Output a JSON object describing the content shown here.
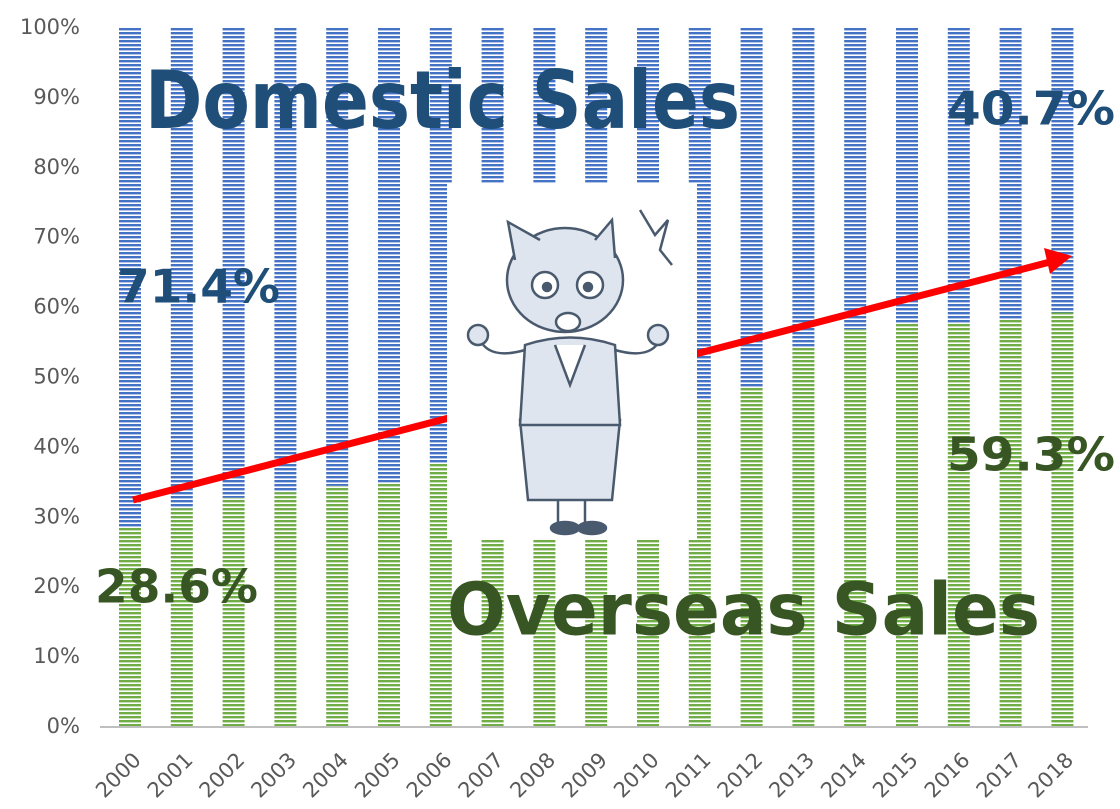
{
  "chart_data": {
    "type": "stacked_bar_100",
    "categories": [
      "2000",
      "2001",
      "2002",
      "2003",
      "2004",
      "2005",
      "2006",
      "2007",
      "2008",
      "2009",
      "2010",
      "2011",
      "2012",
      "2013",
      "2014",
      "2015",
      "2016",
      "2017",
      "2018"
    ],
    "series": [
      {
        "name": "Overseas Sales",
        "color": "#70ad47",
        "values": [
          28.6,
          31.3,
          32.8,
          33.6,
          34.5,
          35.0,
          37.8,
          40.0,
          42.0,
          44.0,
          45.0,
          46.8,
          48.5,
          54.4,
          56.9,
          57.8,
          57.8,
          58.4,
          59.3
        ],
        "value_labels": [
          "28.6%",
          null,
          null,
          null,
          null,
          null,
          null,
          null,
          null,
          null,
          null,
          null,
          null,
          null,
          null,
          null,
          null,
          null,
          "59.3%"
        ]
      },
      {
        "name": "Domestic Sales",
        "color": "#4472c4",
        "values": [
          71.4,
          68.7,
          67.2,
          66.4,
          65.5,
          65.0,
          62.2,
          60.0,
          58.0,
          56.0,
          55.0,
          53.2,
          51.5,
          45.6,
          43.1,
          42.2,
          42.2,
          41.6,
          40.7
        ],
        "value_labels": [
          "71.4%",
          null,
          null,
          null,
          null,
          null,
          null,
          null,
          null,
          null,
          null,
          null,
          null,
          null,
          null,
          null,
          null,
          null,
          "40.7%"
        ]
      }
    ],
    "ylim": [
      0,
      100
    ],
    "yticks": [
      {
        "value": 0,
        "label": "0%"
      },
      {
        "value": 10,
        "label": "10%"
      },
      {
        "value": 20,
        "label": "20%"
      },
      {
        "value": 30,
        "label": "30%"
      },
      {
        "value": 40,
        "label": "40%"
      },
      {
        "value": 50,
        "label": "50%"
      },
      {
        "value": 60,
        "label": "60%"
      },
      {
        "value": 70,
        "label": "70%"
      },
      {
        "value": 80,
        "label": "80%"
      },
      {
        "value": 90,
        "label": "90%"
      },
      {
        "value": 100,
        "label": "100%"
      }
    ],
    "grid": false
  }
}
